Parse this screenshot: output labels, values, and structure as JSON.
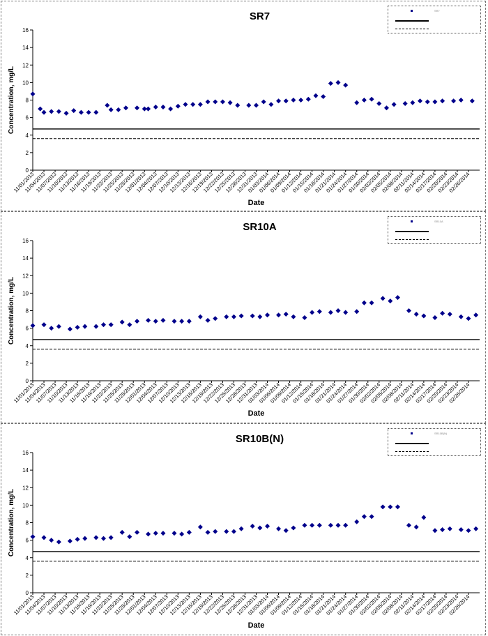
{
  "chart_data": [
    {
      "type": "scatter",
      "title": "SR7",
      "xlabel": "Date",
      "ylabel": "Concentration, mg/L",
      "ylim": [
        0,
        16
      ],
      "yticks": [
        0,
        2,
        4,
        6,
        8,
        10,
        12,
        14,
        16
      ],
      "xlim": [
        "11/01/2013",
        "03/01/2014"
      ],
      "xticks": [
        "11/01/2013",
        "11/04/2013",
        "11/07/2013",
        "11/10/2013",
        "11/13/2013",
        "11/16/2013",
        "11/19/2013",
        "11/22/2013",
        "11/25/2013",
        "11/28/2013",
        "12/01/2013",
        "12/04/2013",
        "12/07/2013",
        "12/10/2013",
        "12/13/2013",
        "12/16/2013",
        "12/19/2013",
        "12/22/2013",
        "12/25/2013",
        "12/28/2013",
        "12/31/2013",
        "01/03/2014",
        "01/06/2014",
        "01/09/2014",
        "01/12/2014",
        "01/15/2014",
        "01/18/2014",
        "01/21/2014",
        "01/24/2014",
        "01/27/2014",
        "01/30/2014",
        "02/02/2014",
        "02/05/2014",
        "02/08/2014",
        "02/11/2014",
        "02/14/2014",
        "02/17/2014",
        "02/20/2014",
        "02/23/2014",
        "02/26/2014"
      ],
      "legend": {
        "position": "top-right",
        "entries": [
          "SR7",
          "",
          ""
        ]
      },
      "reference_lines": [
        {
          "value": 4.7,
          "style": "solid"
        },
        {
          "value": 3.6,
          "style": "dashed"
        }
      ],
      "series": [
        {
          "color": "#00008b",
          "marker": "diamond",
          "x": [
            "11/01/2013",
            "11/03/2013",
            "11/04/2013",
            "11/06/2013",
            "11/08/2013",
            "11/10/2013",
            "11/12/2013",
            "11/14/2013",
            "11/16/2013",
            "11/18/2013",
            "11/21/2013",
            "11/22/2013",
            "11/24/2013",
            "11/26/2013",
            "11/29/2013",
            "12/01/2013",
            "12/02/2013",
            "12/04/2013",
            "12/06/2013",
            "12/08/2013",
            "12/10/2013",
            "12/12/2013",
            "12/14/2013",
            "12/16/2013",
            "12/18/2013",
            "12/20/2013",
            "12/22/2013",
            "12/24/2013",
            "12/26/2013",
            "12/29/2013",
            "12/31/2013",
            "01/02/2014",
            "01/04/2014",
            "01/06/2014",
            "01/08/2014",
            "01/10/2014",
            "01/12/2014",
            "01/14/2014",
            "01/16/2014",
            "01/18/2014",
            "01/20/2014",
            "01/22/2014",
            "01/24/2014",
            "01/27/2014",
            "01/29/2014",
            "01/31/2014",
            "02/02/2014",
            "02/04/2014",
            "02/06/2014",
            "02/09/2014",
            "02/11/2014",
            "02/13/2014",
            "02/15/2014",
            "02/17/2014",
            "02/19/2014",
            "02/22/2014",
            "02/24/2014",
            "02/27/2014"
          ],
          "y": [
            8.7,
            7.0,
            6.6,
            6.7,
            6.7,
            6.5,
            6.8,
            6.6,
            6.6,
            6.6,
            7.4,
            6.9,
            6.9,
            7.1,
            7.1,
            7.0,
            7.0,
            7.2,
            7.2,
            7.0,
            7.3,
            7.5,
            7.5,
            7.5,
            7.8,
            7.8,
            7.8,
            7.7,
            7.4,
            7.4,
            7.4,
            7.8,
            7.5,
            7.9,
            7.9,
            8.0,
            8.0,
            8.1,
            8.5,
            8.4,
            9.9,
            10.0,
            9.7,
            7.7,
            8.0,
            8.1,
            7.6,
            7.1,
            7.5,
            7.6,
            7.7,
            7.9,
            7.8,
            7.8,
            7.9,
            7.9,
            8.0,
            7.9
          ]
        }
      ]
    },
    {
      "type": "scatter",
      "title": "SR10A",
      "xlabel": "Date",
      "ylabel": "Concentration, mg/L",
      "ylim": [
        0,
        16
      ],
      "yticks": [
        0,
        2,
        4,
        6,
        8,
        10,
        12,
        14,
        16
      ],
      "xlim": [
        "11/01/2013",
        "03/01/2014"
      ],
      "xticks": [
        "11/01/2013",
        "11/04/2013",
        "11/07/2013",
        "11/10/2013",
        "11/13/2013",
        "11/16/2013",
        "11/19/2013",
        "11/22/2013",
        "11/25/2013",
        "11/28/2013",
        "12/01/2013",
        "12/04/2013",
        "12/07/2013",
        "12/10/2013",
        "12/13/2013",
        "12/16/2013",
        "12/19/2013",
        "12/22/2013",
        "12/25/2013",
        "12/28/2013",
        "12/31/2013",
        "01/03/2014",
        "01/06/2014",
        "01/09/2014",
        "01/12/2014",
        "01/15/2014",
        "01/18/2014",
        "01/21/2014",
        "01/24/2014",
        "01/27/2014",
        "01/30/2014",
        "02/02/2014",
        "02/05/2014",
        "02/08/2014",
        "02/11/2014",
        "02/14/2014",
        "02/17/2014",
        "02/20/2014",
        "02/23/2014",
        "02/26/2014"
      ],
      "legend": {
        "position": "top-right",
        "entries": [
          "SR10A",
          "",
          ""
        ]
      },
      "reference_lines": [
        {
          "value": 4.7,
          "style": "solid"
        },
        {
          "value": 3.6,
          "style": "dashed"
        }
      ],
      "series": [
        {
          "color": "#00008b",
          "marker": "diamond",
          "x": [
            "11/01/2013",
            "11/04/2013",
            "11/06/2013",
            "11/08/2013",
            "11/11/2013",
            "11/13/2013",
            "11/15/2013",
            "11/18/2013",
            "11/20/2013",
            "11/22/2013",
            "11/25/2013",
            "11/27/2013",
            "11/29/2013",
            "12/02/2013",
            "12/04/2013",
            "12/06/2013",
            "12/09/2013",
            "12/11/2013",
            "12/13/2013",
            "12/16/2013",
            "12/18/2013",
            "12/20/2013",
            "12/23/2013",
            "12/25/2013",
            "12/27/2013",
            "12/30/2013",
            "01/01/2014",
            "01/03/2014",
            "01/06/2014",
            "01/08/2014",
            "01/10/2014",
            "01/13/2014",
            "01/15/2014",
            "01/17/2014",
            "01/20/2014",
            "01/22/2014",
            "01/24/2014",
            "01/27/2014",
            "01/29/2014",
            "01/31/2014",
            "02/03/2014",
            "02/05/2014",
            "02/07/2014",
            "02/10/2014",
            "02/12/2014",
            "02/14/2014",
            "02/17/2014",
            "02/19/2014",
            "02/21/2014",
            "02/24/2014",
            "02/26/2014",
            "02/28/2014"
          ],
          "y": [
            6.3,
            6.4,
            6.0,
            6.2,
            5.9,
            6.1,
            6.2,
            6.2,
            6.4,
            6.4,
            6.7,
            6.4,
            6.8,
            6.9,
            6.8,
            6.9,
            6.8,
            6.8,
            6.8,
            7.3,
            6.9,
            7.1,
            7.3,
            7.3,
            7.4,
            7.4,
            7.3,
            7.5,
            7.5,
            7.6,
            7.3,
            7.2,
            7.8,
            7.9,
            7.8,
            8.0,
            7.8,
            7.9,
            8.9,
            8.9,
            9.4,
            9.1,
            9.5,
            8.0,
            7.6,
            7.4,
            7.2,
            7.7,
            7.6,
            7.3,
            7.1,
            7.5
          ]
        }
      ]
    },
    {
      "type": "scatter",
      "title": "SR10B(N)",
      "xlabel": "Date",
      "ylabel": "Concentration, mg/L",
      "ylim": [
        0,
        16
      ],
      "yticks": [
        0,
        2,
        4,
        6,
        8,
        10,
        12,
        14,
        16
      ],
      "xlim": [
        "11/01/2013",
        "03/01/2014"
      ],
      "xticks": [
        "11/01/2013",
        "11/04/2013",
        "11/07/2013",
        "11/10/2013",
        "11/13/2013",
        "11/16/2013",
        "11/19/2013",
        "11/22/2013",
        "11/25/2013",
        "11/28/2013",
        "12/01/2013",
        "12/04/2013",
        "12/07/2013",
        "12/10/2013",
        "12/13/2013",
        "12/16/2013",
        "12/19/2013",
        "12/22/2013",
        "12/25/2013",
        "12/28/2013",
        "12/31/2013",
        "01/03/2014",
        "01/06/2014",
        "01/09/2014",
        "01/12/2014",
        "01/15/2014",
        "01/18/2014",
        "01/21/2014",
        "01/24/2014",
        "01/27/2014",
        "01/30/2014",
        "02/02/2014",
        "02/05/2014",
        "02/08/2014",
        "02/11/2014",
        "02/14/2014",
        "02/17/2014",
        "02/20/2014",
        "02/23/2014",
        "02/26/2014"
      ],
      "legend": {
        "position": "top-right",
        "entries": [
          "SR10B(N)",
          "",
          ""
        ]
      },
      "reference_lines": [
        {
          "value": 4.7,
          "style": "solid"
        },
        {
          "value": 3.6,
          "style": "dashed"
        }
      ],
      "series": [
        {
          "color": "#00008b",
          "marker": "diamond",
          "x": [
            "11/01/2013",
            "11/04/2013",
            "11/06/2013",
            "11/08/2013",
            "11/11/2013",
            "11/13/2013",
            "11/15/2013",
            "11/18/2013",
            "11/20/2013",
            "11/22/2013",
            "11/25/2013",
            "11/27/2013",
            "11/29/2013",
            "12/02/2013",
            "12/04/2013",
            "12/06/2013",
            "12/09/2013",
            "12/11/2013",
            "12/13/2013",
            "12/16/2013",
            "12/18/2013",
            "12/20/2013",
            "12/23/2013",
            "12/25/2013",
            "12/27/2013",
            "12/30/2013",
            "01/01/2014",
            "01/03/2014",
            "01/06/2014",
            "01/08/2014",
            "01/10/2014",
            "01/13/2014",
            "01/15/2014",
            "01/17/2014",
            "01/20/2014",
            "01/22/2014",
            "01/24/2014",
            "01/27/2014",
            "01/29/2014",
            "01/31/2014",
            "02/03/2014",
            "02/05/2014",
            "02/07/2014",
            "02/10/2014",
            "02/12/2014",
            "02/14/2014",
            "02/17/2014",
            "02/19/2014",
            "02/21/2014",
            "02/24/2014",
            "02/26/2014",
            "02/28/2014"
          ],
          "y": [
            6.4,
            6.3,
            6.0,
            5.8,
            5.9,
            6.1,
            6.2,
            6.3,
            6.2,
            6.3,
            6.9,
            6.4,
            6.9,
            6.7,
            6.8,
            6.8,
            6.8,
            6.7,
            6.9,
            7.5,
            6.9,
            7.0,
            7.0,
            7.0,
            7.3,
            7.6,
            7.4,
            7.6,
            7.3,
            7.1,
            7.4,
            7.7,
            7.7,
            7.7,
            7.7,
            7.7,
            7.7,
            8.1,
            8.7,
            8.7,
            9.8,
            9.8,
            9.8,
            7.7,
            7.5,
            8.6,
            7.1,
            7.2,
            7.3,
            7.2,
            7.1,
            7.3
          ]
        }
      ]
    }
  ]
}
